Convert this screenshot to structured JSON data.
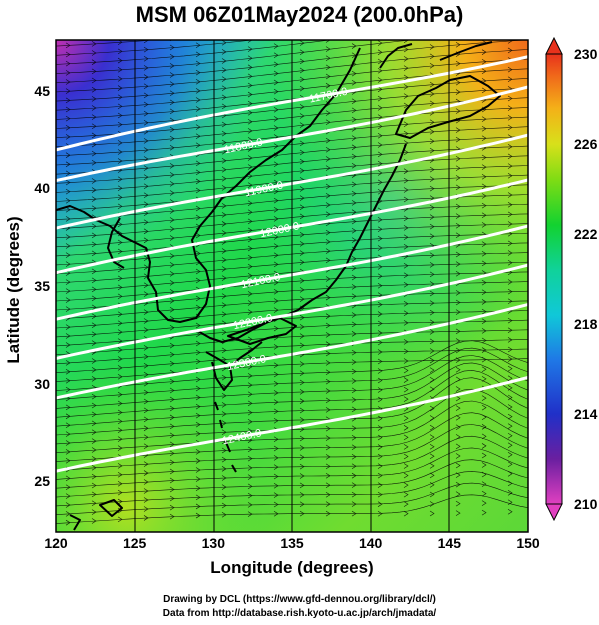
{
  "title": "MSM 06Z01May2024 (200.0hPa)",
  "x_axis": {
    "label": "Longitude (degrees)",
    "ticks": [
      "120",
      "125",
      "130",
      "135",
      "140",
      "145",
      "150"
    ],
    "tick_values": [
      120,
      125,
      130,
      135,
      140,
      145,
      150
    ],
    "range": [
      120,
      150
    ]
  },
  "y_axis": {
    "label": "Latitude  (degrees)",
    "ticks": [
      "25",
      "30",
      "35",
      "40",
      "45"
    ],
    "tick_values": [
      25,
      30,
      35,
      40,
      45
    ],
    "range": [
      22.4,
      47.6
    ]
  },
  "colorbar": {
    "min": 210,
    "max": 230,
    "tick_labels": [
      "230",
      "226",
      "222",
      "218",
      "214",
      "210"
    ],
    "tick_values": [
      230,
      226,
      222,
      218,
      214,
      210
    ]
  },
  "contours": {
    "color": "#ffffff",
    "labels": [
      {
        "text": "11700.0",
        "lon": 137.3,
        "lat": 44.8
      },
      {
        "text": "11800.0",
        "lon": 131.9,
        "lat": 42.2
      },
      {
        "text": "11900.0",
        "lon": 133.2,
        "lat": 40.0
      },
      {
        "text": "12000.0",
        "lon": 134.2,
        "lat": 37.9
      },
      {
        "text": "12100.0",
        "lon": 133.0,
        "lat": 35.3
      },
      {
        "text": "12200.0",
        "lon": 132.5,
        "lat": 33.2
      },
      {
        "text": "12300.0",
        "lon": 132.1,
        "lat": 31.1
      },
      {
        "text": "12400.0",
        "lon": 131.8,
        "lat": 27.3
      }
    ]
  },
  "credits": {
    "line1": "Drawing by DCL (https://www.gfd-dennou.org/library/dcl/)",
    "line2": "Data from http://database.rish.kyoto-u.ac.jp/arch/jmadata/"
  }
}
